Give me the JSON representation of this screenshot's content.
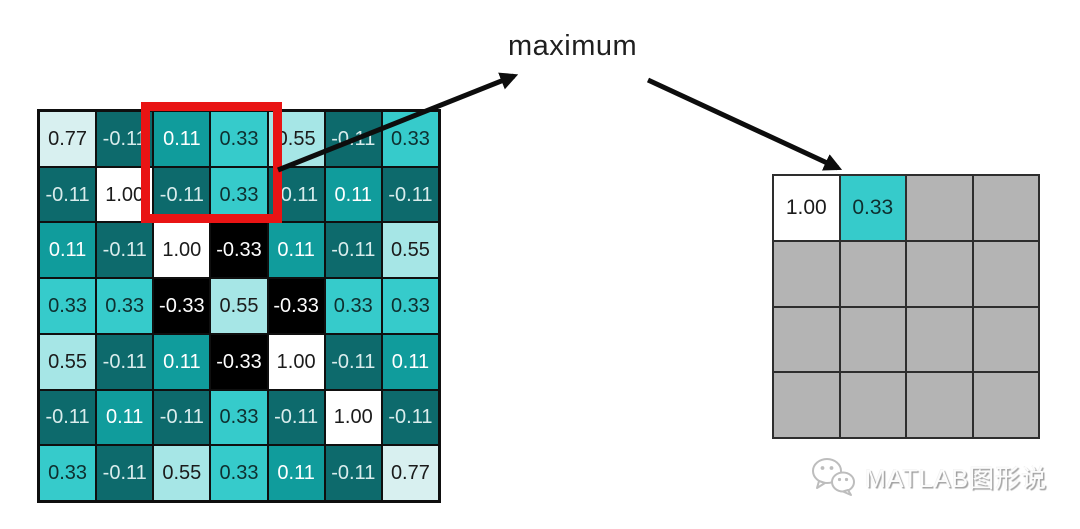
{
  "labels": {
    "operation": "maximum"
  },
  "input_matrix": {
    "size": "7x7",
    "cells": [
      [
        "0.77",
        "-0.11",
        "0.11",
        "0.33",
        "0.55",
        "-0.11",
        "0.33"
      ],
      [
        "-0.11",
        "1.00",
        "-0.11",
        "0.33",
        "-0.11",
        "0.11",
        "-0.11"
      ],
      [
        "0.11",
        "-0.11",
        "1.00",
        "-0.33",
        "0.11",
        "-0.11",
        "0.55"
      ],
      [
        "0.33",
        "0.33",
        "-0.33",
        "0.55",
        "-0.33",
        "0.33",
        "0.33"
      ],
      [
        "0.55",
        "-0.11",
        "0.11",
        "-0.33",
        "1.00",
        "-0.11",
        "0.11"
      ],
      [
        "-0.11",
        "0.11",
        "-0.11",
        "0.33",
        "-0.11",
        "1.00",
        "-0.11"
      ],
      [
        "0.33",
        "-0.11",
        "0.55",
        "0.33",
        "0.11",
        "-0.11",
        "0.77"
      ]
    ]
  },
  "output_matrix": {
    "size": "4x4",
    "cells": [
      [
        "1.00",
        "0.33",
        null,
        null
      ],
      [
        null,
        null,
        null,
        null
      ],
      [
        null,
        null,
        null,
        null
      ],
      [
        null,
        null,
        null,
        null
      ]
    ]
  },
  "value_styles": {
    "1.00": {
      "bg": "#ffffff",
      "fg": "#1b1b1b"
    },
    "0.77": {
      "bg": "#d8f0f0",
      "fg": "#1b1b1b"
    },
    "0.55": {
      "bg": "#a6e6e6",
      "fg": "#1b1b1b"
    },
    "0.33": {
      "bg": "#36cbcb",
      "fg": "#0e2f2f"
    },
    "0.11": {
      "bg": "#109c9c",
      "fg": "#ffffff"
    },
    "-0.11": {
      "bg": "#0d6a6c",
      "fg": "#d9ecec"
    },
    "-0.33": {
      "bg": "#000000",
      "fg": "#fdfdfd"
    },
    "empty": {
      "bg": "#b4b4b4",
      "fg": "#1b1b1b"
    }
  },
  "colors": {
    "arrow": "#0d0d0d",
    "highlight": "#e91414",
    "input_grid_line": "#0f0f0f",
    "output_grid_line": "#2e2e2e"
  },
  "watermark": {
    "icon": "wechat-icon",
    "text": "MATLAB图形说"
  }
}
